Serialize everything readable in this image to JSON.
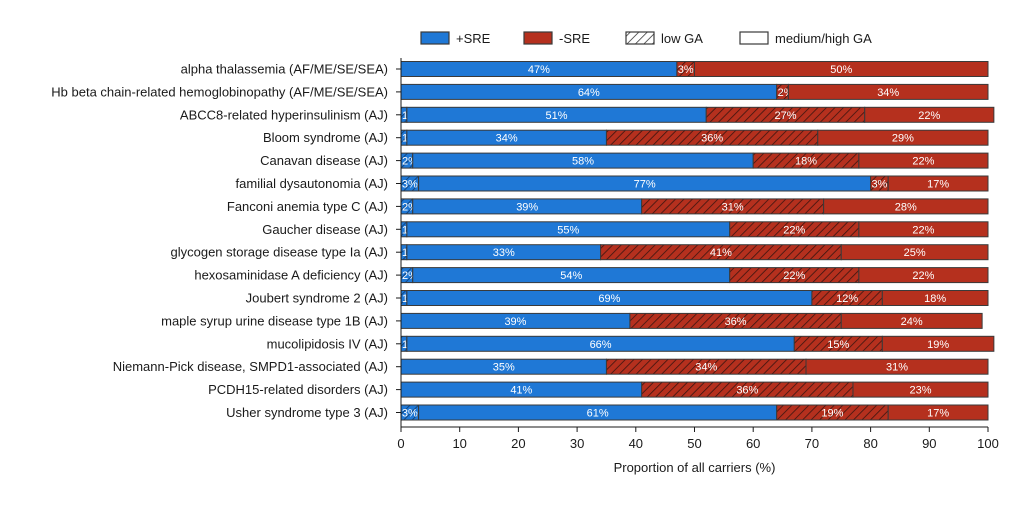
{
  "chart_data": {
    "type": "bar",
    "orientation": "horizontal",
    "stacked": true,
    "title": "",
    "xlabel": "Proportion of all carriers (%)",
    "ylabel": "",
    "xlim": [
      0,
      100
    ],
    "xticks": [
      0,
      10,
      20,
      30,
      40,
      50,
      60,
      70,
      80,
      90,
      100
    ],
    "grid": false,
    "legend_position": "top",
    "legend": [
      {
        "key": "pos_sre",
        "label": "+SRE",
        "style": "solid",
        "color": "#1f78d6"
      },
      {
        "key": "neg_sre",
        "label": "-SRE",
        "style": "solid",
        "color": "#b5301e"
      },
      {
        "key": "low_ga",
        "label": "low GA",
        "style": "hatched",
        "color": "#ffffff"
      },
      {
        "key": "med_high_ga",
        "label": "medium/high GA",
        "style": "outline",
        "color": "#ffffff"
      }
    ],
    "colors": {
      "pos_sre": "#1f78d6",
      "neg_sre": "#b5301e",
      "outline": "#3a3a3a"
    },
    "categories": [
      "alpha thalassemia (AF/ME/SE/SEA)",
      "Hb beta chain-related hemoglobinopathy (AF/ME/SE/SEA)",
      "ABCC8-related hyperinsulinism (AJ)",
      "Bloom syndrome (AJ)",
      "Canavan disease (AJ)",
      "familial dysautonomia (AJ)",
      "Fanconi anemia type C (AJ)",
      "Gaucher disease (AJ)",
      "glycogen storage disease type Ia (AJ)",
      "hexosaminidase A deficiency (AJ)",
      "Joubert syndrome 2 (AJ)",
      "maple syrup urine disease type 1B (AJ)",
      "mucolipidosis IV (AJ)",
      "Niemann-Pick disease, SMPD1-associated (AJ)",
      "PCDH15-related disorders (AJ)",
      "Usher syndrome type 3 (AJ)"
    ],
    "series": [
      {
        "name": "+SRE low GA",
        "sre": "pos",
        "ga": "low",
        "values": [
          0,
          0,
          1,
          1,
          2,
          3,
          2,
          1,
          1,
          2,
          1,
          0,
          1,
          0,
          0,
          3
        ],
        "labels": [
          "",
          "",
          "1%",
          "1%",
          "2%",
          "3%",
          "2%",
          "1%",
          "1%",
          "2%",
          "1%",
          "",
          "1%",
          "",
          "",
          "3%"
        ]
      },
      {
        "name": "+SRE medium/high GA",
        "sre": "pos",
        "ga": "medium/high",
        "values": [
          47,
          64,
          51,
          34,
          58,
          77,
          39,
          55,
          33,
          54,
          69,
          39,
          66,
          35,
          41,
          61
        ],
        "labels": [
          "47%",
          "64%",
          "51%",
          "34%",
          "58%",
          "77%",
          "39%",
          "55%",
          "33%",
          "54%",
          "69%",
          "39%",
          "66%",
          "35%",
          "41%",
          "61%"
        ]
      },
      {
        "name": "-SRE low GA",
        "sre": "neg",
        "ga": "low",
        "values": [
          3,
          2,
          27,
          36,
          18,
          3,
          31,
          22,
          41,
          22,
          12,
          36,
          15,
          34,
          36,
          19
        ],
        "labels": [
          "3%",
          "2%",
          "27%",
          "36%",
          "18%",
          "3%",
          "31%",
          "22%",
          "41%",
          "22%",
          "12%",
          "36%",
          "15%",
          "34%",
          "36%",
          "19%"
        ]
      },
      {
        "name": "-SRE medium/high GA",
        "sre": "neg",
        "ga": "medium/high",
        "values": [
          50,
          34,
          22,
          29,
          22,
          17,
          28,
          22,
          25,
          22,
          18,
          24,
          19,
          31,
          23,
          17
        ],
        "labels": [
          "50%",
          "34%",
          "22%",
          "29%",
          "22%",
          "17%",
          "28%",
          "22%",
          "25%",
          "22%",
          "18%",
          "24%",
          "19%",
          "31%",
          "23%",
          "17%"
        ]
      }
    ]
  }
}
